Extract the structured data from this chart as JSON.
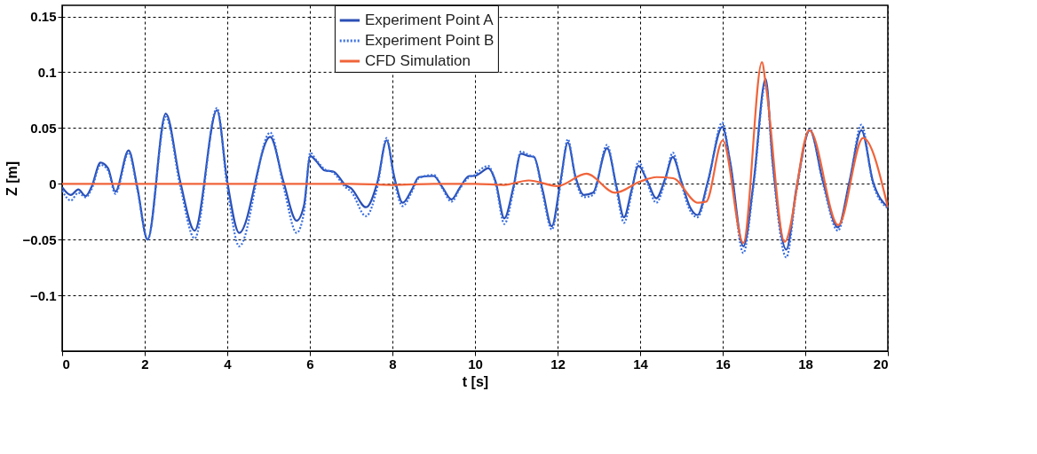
{
  "chart_data": {
    "type": "line",
    "xlabel": "t [s]",
    "ylabel": "Z [m]",
    "xlim": [
      0,
      20
    ],
    "ylim": [
      -0.15,
      0.16
    ],
    "xticks": [
      0,
      2,
      4,
      6,
      8,
      10,
      12,
      14,
      16,
      18,
      20
    ],
    "yticks": [
      -0.1,
      -0.05,
      0,
      0.05,
      0.1,
      0.15
    ],
    "grid": true,
    "legend": "top",
    "marker": "none",
    "series": [
      {
        "name": "Experiment Point A",
        "color": "#2a4fb5",
        "line_style": "solid",
        "x": [
          0,
          0.21,
          0.39,
          0.57,
          0.71,
          0.93,
          1.11,
          1.29,
          1.61,
          1.82,
          2.07,
          2.51,
          2.86,
          3.21,
          3.75,
          4.0,
          4.29,
          5.04,
          5.36,
          5.68,
          5.86,
          6.01,
          6.14,
          6.36,
          6.57,
          6.86,
          7.0,
          7.36,
          7.64,
          7.86,
          8.04,
          8.25,
          8.46,
          8.64,
          9.0,
          9.21,
          9.43,
          9.64,
          9.86,
          10.0,
          10.14,
          10.32,
          10.5,
          10.71,
          10.93,
          11.11,
          11.29,
          11.43,
          11.64,
          11.86,
          12.07,
          12.25,
          12.43,
          12.64,
          12.86,
          13.2,
          13.43,
          13.61,
          13.79,
          13.96,
          14.18,
          14.39,
          14.61,
          14.79,
          15.0,
          15.21,
          15.39,
          15.64,
          15.99,
          16.18,
          16.5,
          16.75,
          17.04,
          17.21,
          17.54,
          17.79,
          18.11,
          18.43,
          18.79,
          19.07,
          19.36,
          19.64,
          20.0
        ],
        "values": [
          -0.003,
          -0.01,
          -0.005,
          -0.011,
          -0.003,
          0.019,
          0.014,
          -0.007,
          0.03,
          -0.003,
          -0.05,
          0.063,
          0.002,
          -0.042,
          0.066,
          0.002,
          -0.044,
          0.042,
          0.002,
          -0.033,
          -0.019,
          0.025,
          0.021,
          0.012,
          0.011,
          -0.001,
          -0.004,
          -0.021,
          0.002,
          0.039,
          0.007,
          -0.017,
          -0.006,
          0.006,
          0.007,
          -0.003,
          -0.014,
          -0.003,
          0.007,
          0.007,
          0.01,
          0.014,
          0.002,
          -0.031,
          -0.003,
          0.027,
          0.025,
          0.024,
          -0.006,
          -0.038,
          0.002,
          0.037,
          0.007,
          -0.01,
          -0.008,
          0.032,
          -0.003,
          -0.03,
          -0.006,
          0.016,
          0.002,
          -0.013,
          0.005,
          0.024,
          0.002,
          -0.021,
          -0.028,
          0.002,
          0.051,
          0.02,
          -0.056,
          0.002,
          0.094,
          0.02,
          -0.059,
          -0.003,
          0.048,
          0.002,
          -0.039,
          0.002,
          0.048,
          0.002,
          -0.021
        ]
      },
      {
        "name": "Experiment Point B",
        "color": "#3a6fe0",
        "line_style": "dotted",
        "x": [
          0,
          0.21,
          0.39,
          0.57,
          0.71,
          0.93,
          1.11,
          1.29,
          1.61,
          1.82,
          2.07,
          2.51,
          2.86,
          3.21,
          3.75,
          4.0,
          4.29,
          5.04,
          5.36,
          5.68,
          5.86,
          6.01,
          6.14,
          6.36,
          6.57,
          6.86,
          7.0,
          7.36,
          7.64,
          7.86,
          8.04,
          8.25,
          8.46,
          8.64,
          9.0,
          9.21,
          9.43,
          9.64,
          9.86,
          10.0,
          10.14,
          10.32,
          10.5,
          10.71,
          10.93,
          11.11,
          11.29,
          11.43,
          11.64,
          11.86,
          12.07,
          12.25,
          12.43,
          12.64,
          12.86,
          13.2,
          13.43,
          13.61,
          13.79,
          13.96,
          14.18,
          14.39,
          14.61,
          14.79,
          15.0,
          15.21,
          15.39,
          15.64,
          15.99,
          16.18,
          16.5,
          16.75,
          17.04,
          17.21,
          17.54,
          17.79,
          18.11,
          18.43,
          18.79,
          19.07,
          19.36,
          19.64,
          20.0
        ],
        "values": [
          -0.006,
          -0.015,
          -0.008,
          -0.012,
          -0.005,
          0.017,
          0.012,
          -0.009,
          0.028,
          -0.005,
          -0.05,
          0.06,
          -0.002,
          -0.049,
          0.068,
          -0.003,
          -0.056,
          0.046,
          -0.002,
          -0.044,
          -0.025,
          0.028,
          0.022,
          0.013,
          0.01,
          -0.003,
          -0.007,
          -0.029,
          -0.002,
          0.041,
          0.004,
          -0.02,
          -0.008,
          0.005,
          0.008,
          -0.004,
          -0.016,
          -0.004,
          0.006,
          0.008,
          0.013,
          0.016,
          0.0,
          -0.036,
          -0.006,
          0.029,
          0.026,
          0.024,
          -0.009,
          -0.041,
          -0.001,
          0.04,
          0.005,
          -0.012,
          -0.01,
          0.035,
          -0.006,
          -0.035,
          -0.009,
          0.02,
          0.0,
          -0.017,
          0.003,
          0.028,
          0.0,
          -0.024,
          -0.03,
          0.0,
          0.055,
          0.018,
          -0.062,
          -0.001,
          0.09,
          0.017,
          -0.066,
          -0.006,
          0.049,
          0.0,
          -0.042,
          0.0,
          0.053,
          0.0,
          -0.022
        ]
      },
      {
        "name": "CFD Simulation",
        "color": "#f0643a",
        "line_style": "solid",
        "x": [
          0,
          2,
          4,
          6,
          7,
          8,
          9,
          10,
          10.7,
          11.3,
          12.0,
          12.7,
          13.4,
          14.0,
          14.4,
          14.8,
          15.4,
          15.6,
          16.0,
          16.5,
          16.95,
          17.05,
          17.5,
          18.1,
          18.8,
          19.4,
          20.0
        ],
        "values": [
          0,
          0,
          0,
          0,
          0,
          -0.001,
          0,
          0,
          -0.001,
          0.003,
          -0.002,
          0.009,
          -0.008,
          0.002,
          0.006,
          0.005,
          -0.017,
          -0.016,
          0.039,
          -0.053,
          0.109,
          0.087,
          -0.052,
          0.048,
          -0.037,
          0.041,
          -0.021
        ]
      }
    ]
  }
}
